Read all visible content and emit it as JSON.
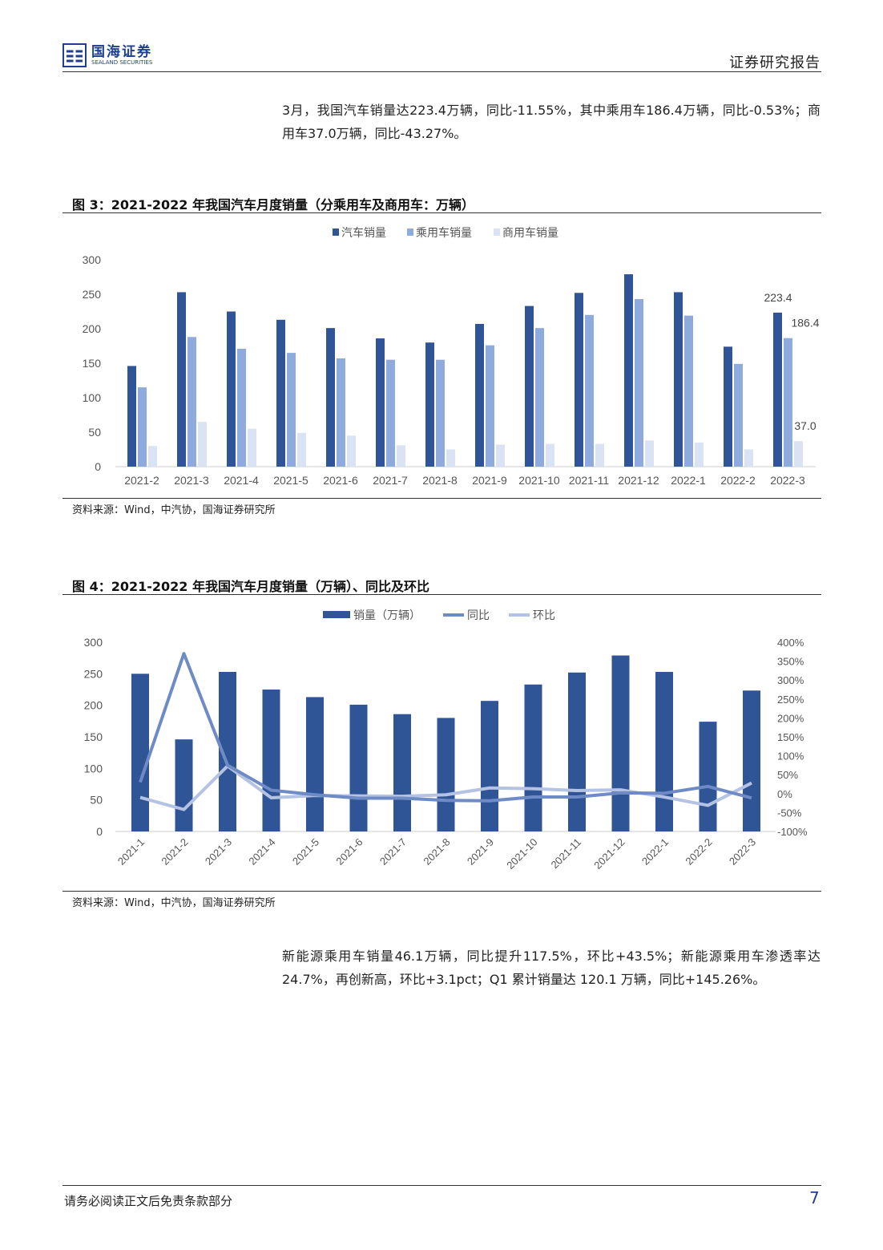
{
  "header": {
    "logo_cn": "国海证券",
    "logo_en": "SEALAND SECURITIES",
    "doc_type": "证券研究报告"
  },
  "intro": "3月，我国汽车销量达223.4万辆，同比-11.55%，其中乘用车186.4万辆，同比-0.53%；商用车37.0万辆，同比-43.27%。",
  "fig3": {
    "title": "图 3：2021-2022 年我国汽车月度销量（分乘用车及商用车：万辆）",
    "source": "资料来源：Wind，中汽协，国海证券研究所"
  },
  "fig4": {
    "title": "图 4：2021-2022 年我国汽车月度销量（万辆）、同比及环比",
    "source": "资料来源：Wind，中汽协，国海证券研究所"
  },
  "outro": "新能源乘用车销量46.1万辆，同比提升117.5%，环比+43.5%；新能源乘用车渗透率达 24.7%，再创新高，环比+3.1pct；Q1 累计销量达 120.1 万辆，同比+145.26%。",
  "footer": {
    "disclaimer": "请务必阅读正文后免责条款部分",
    "page": "7"
  },
  "chart_data": [
    {
      "type": "bar",
      "title": "图 3：2021-2022 年我国汽车月度销量（分乘用车及商用车：万辆）",
      "ylim": [
        0,
        300
      ],
      "yticks": [
        "0",
        "50",
        "100",
        "150",
        "200",
        "250",
        "300"
      ],
      "categories": [
        "2021-2",
        "2021-3",
        "2021-4",
        "2021-5",
        "2021-6",
        "2021-7",
        "2021-8",
        "2021-9",
        "2021-10",
        "2021-11",
        "2021-12",
        "2022-1",
        "2022-2",
        "2022-3"
      ],
      "series": [
        {
          "name": "汽车销量",
          "color": "#2f5597",
          "values": [
            146,
            253,
            225,
            213,
            201,
            186,
            180,
            207,
            233,
            252,
            279,
            253,
            174,
            223.4
          ]
        },
        {
          "name": "乘用车销量",
          "color": "#8faadc",
          "values": [
            115,
            188,
            171,
            165,
            157,
            155,
            155,
            176,
            201,
            220,
            243,
            219,
            149,
            186.4
          ]
        },
        {
          "name": "商用车销量",
          "color": "#dae3f3",
          "values": [
            30,
            65,
            55,
            49,
            45,
            31,
            25,
            32,
            33,
            33,
            38,
            35,
            25,
            37.0
          ]
        }
      ],
      "data_labels": [
        "223.4",
        "186.4",
        "37.0"
      ],
      "legend": "top"
    },
    {
      "type": "bar+line",
      "title": "图 4：2021-2022 年我国汽车月度销量（万辆）、同比及环比",
      "ylim": [
        0,
        300
      ],
      "y2lim": [
        -100,
        400
      ],
      "yticks": [
        "0",
        "50",
        "100",
        "150",
        "200",
        "250",
        "300"
      ],
      "y2ticks": [
        "-100%",
        "-50%",
        "0%",
        "50%",
        "100%",
        "150%",
        "200%",
        "250%",
        "300%",
        "350%",
        "400%"
      ],
      "categories": [
        "2021-1",
        "2021-2",
        "2021-3",
        "2021-4",
        "2021-5",
        "2021-6",
        "2021-7",
        "2021-8",
        "2021-9",
        "2021-10",
        "2021-11",
        "2021-12",
        "2022-1",
        "2022-2",
        "2022-3"
      ],
      "series": [
        {
          "name": "销量（万辆）",
          "type": "bar",
          "color": "#2f5597",
          "values": [
            250,
            146,
            253,
            225,
            213,
            201,
            186,
            180,
            207,
            233,
            252,
            279,
            253,
            174,
            223.4
          ]
        },
        {
          "name": "同比",
          "type": "line",
          "axis": "right",
          "color": "#6f8bc6",
          "values": [
            30,
            370,
            75,
            9,
            -3,
            -12,
            -12,
            -18,
            -19,
            -9,
            -9,
            2,
            1,
            19,
            -11.55
          ]
        },
        {
          "name": "环比",
          "type": "line",
          "axis": "right",
          "color": "#b4c2e3",
          "values": [
            -10,
            -42,
            73,
            -11,
            -5,
            -6,
            -7,
            -3,
            15,
            13,
            8,
            10,
            -9,
            -31,
            28
          ]
        }
      ],
      "legend": "top"
    }
  ]
}
